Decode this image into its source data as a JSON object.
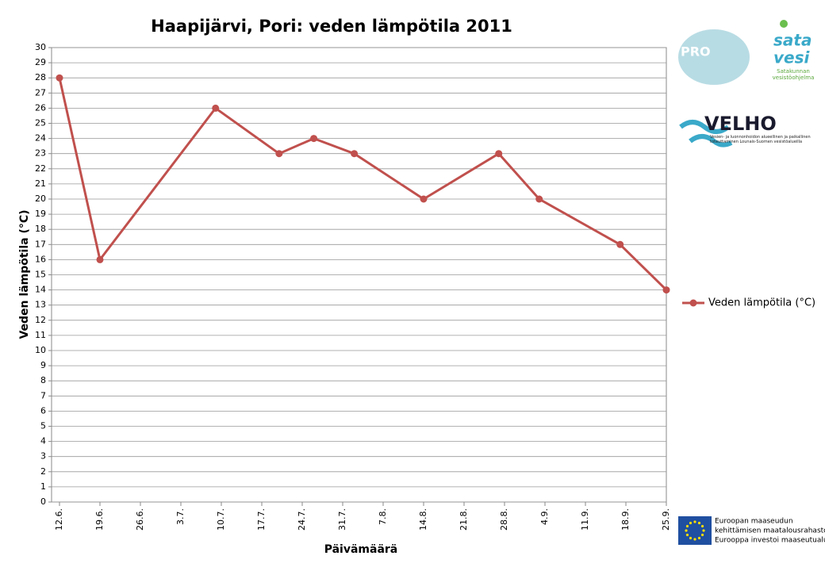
{
  "chart_data": {
    "type": "line",
    "title": "Haapijärvi, Pori: veden lämpötila 2011",
    "x_label": "Päivämäärä",
    "y_label": "Veden lämpötila (°C)",
    "x": [
      "12.6.",
      "19.6.",
      "9.7.",
      "20.7.",
      "26.7.",
      "2.8.",
      "14.8.",
      "27.8.",
      "3.9.",
      "17.9.",
      "25.9."
    ],
    "series": [
      {
        "name": "Veden lämpötila (°C)",
        "color": "#c0504d",
        "values": [
          28,
          16,
          26,
          23,
          24,
          23,
          20,
          23,
          20,
          17,
          14
        ]
      }
    ],
    "xlim": [
      "12.6.",
      "25.9."
    ],
    "xticks": [
      "12.6.",
      "19.6.",
      "26.6.",
      "3.7.",
      "10.7.",
      "17.7.",
      "24.7.",
      "31.7.",
      "7.8.",
      "14.8.",
      "21.8.",
      "28.8.",
      "4.9.",
      "11.9.",
      "18.9.",
      "25.9."
    ],
    "ylim": [
      0,
      30
    ],
    "yticks": [
      0,
      1,
      2,
      3,
      4,
      5,
      6,
      7,
      8,
      9,
      10,
      11,
      12,
      13,
      14,
      15,
      16,
      17,
      18,
      19,
      20,
      21,
      22,
      23,
      24,
      25,
      26,
      27,
      28,
      29,
      30
    ],
    "grid": true,
    "legend": "right"
  },
  "logos": {
    "pro": "PRO",
    "satavesi_1": "sata",
    "satavesi_2": "vesi",
    "satavesi_sub": "Satakunnan vesistöohjelma",
    "velho": "VELHO",
    "velho_sub": "Vesien- ja luonnonhoidon alueellinen ja paikallinen toteuttaminen Lounais-Suomen vesistöalueilla",
    "eu_1": "Euroopan maaseudun",
    "eu_2": "kehittämisen maatalousrahasto:",
    "eu_3": "Eurooppa investoi maaseutualueisiin"
  }
}
